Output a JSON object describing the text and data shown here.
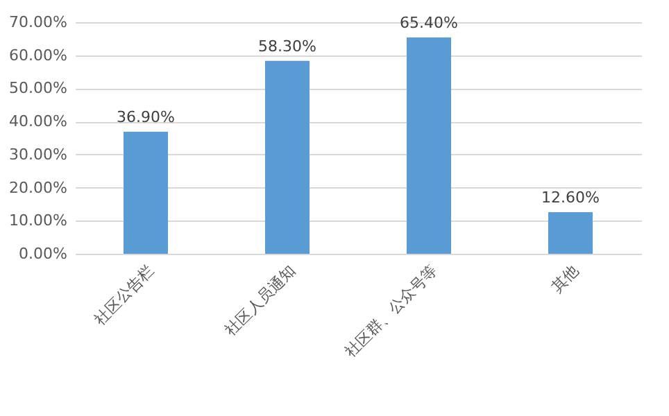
{
  "chart_data": {
    "type": "bar",
    "categories": [
      "社区公告栏",
      "社区人员通知",
      "社区群、公众号等",
      "其他"
    ],
    "values": [
      36.9,
      58.3,
      65.4,
      12.6
    ],
    "color": "#5b9bd5",
    "value_labels": [
      "36.90%",
      "58.30%",
      "65.40%",
      "12.60%"
    ],
    "ylim": [
      0,
      70
    ],
    "yticks": [
      {
        "value": 0,
        "label": "0.00%"
      },
      {
        "value": 10,
        "label": "10.00%"
      },
      {
        "value": 20,
        "label": "20.00%"
      },
      {
        "value": 30,
        "label": "30.00%"
      },
      {
        "value": 40,
        "label": "40.00%"
      },
      {
        "value": 50,
        "label": "50.00%"
      },
      {
        "value": 60,
        "label": "60.00%"
      },
      {
        "value": 70,
        "label": "70.00%"
      }
    ],
    "grid": "y"
  }
}
